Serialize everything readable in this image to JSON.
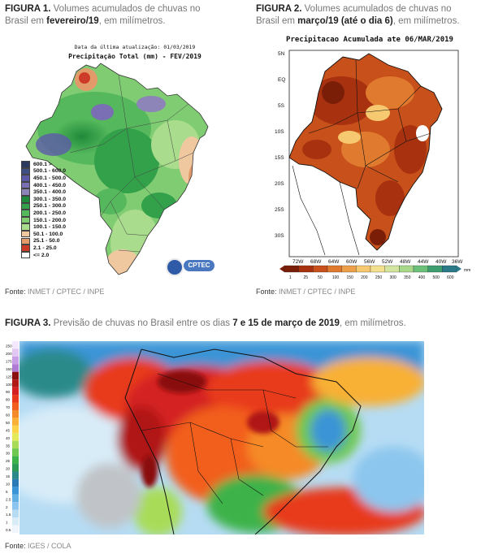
{
  "fig1": {
    "label": "FIGURA 1.",
    "caption_a": " Volumes acumulados de chuvas no Brasil em ",
    "caption_bold": "fevereiro/19",
    "caption_b": ", em milímetros.",
    "date_line": "Data da última atualização: 01/03/2019",
    "map_title": "Precipitação Total (mm) - FEV/2019",
    "legend": [
      {
        "label": "600.1 >",
        "color": "#2a3a60"
      },
      {
        "label": "500.1 - 600.0",
        "color": "#3e4f86"
      },
      {
        "label": "450.1 - 500.0",
        "color": "#5c5aa8"
      },
      {
        "label": "400.1 - 450.0",
        "color": "#7a6fb5"
      },
      {
        "label": "350.1 - 400.0",
        "color": "#8d84b8"
      },
      {
        "label": "300.1 - 350.0",
        "color": "#1e8a3a"
      },
      {
        "label": "250.1 - 300.0",
        "color": "#33a04a"
      },
      {
        "label": "200.1 - 250.0",
        "color": "#55b85c"
      },
      {
        "label": "150.1 - 200.0",
        "color": "#7fcc72"
      },
      {
        "label": "100.1 - 150.0",
        "color": "#a9dc8c"
      },
      {
        "label": "50.1 - 100.0",
        "color": "#f0c8a0"
      },
      {
        "label": "25.1 - 50.0",
        "color": "#e39a6a"
      },
      {
        "label": "2.1 - 25.0",
        "color": "#cc3a28"
      },
      {
        "label": "<= 2.0",
        "color": "#ffffff"
      }
    ],
    "logo_text": "CPTEC",
    "source_label": "Fonte: ",
    "source_value": "INMET / CPTEC / INPE"
  },
  "fig2": {
    "label": "FIGURA 2.",
    "caption_a": " Volumes acumulados de chuvas no Brasil em ",
    "caption_bold": "março/19 (até o dia 6)",
    "caption_b": ", em milímetros.",
    "map_title": "Precipitacao Acumulada ate 06/MAR/2019",
    "lat_labels": [
      "5N",
      "EQ",
      "5S",
      "10S",
      "15S",
      "20S",
      "25S",
      "30S"
    ],
    "lon_labels": [
      "72W",
      "68W",
      "64W",
      "60W",
      "56W",
      "52W",
      "48W",
      "44W",
      "40W",
      "36W"
    ],
    "colorbar_labels": [
      "1",
      "25",
      "50",
      "100",
      "150",
      "200",
      "250",
      "300",
      "350",
      "400",
      "500",
      "600"
    ],
    "colorbar_colors": [
      "#7a1e08",
      "#a83210",
      "#c8501a",
      "#df7a2e",
      "#eda04a",
      "#f6c870",
      "#f3e08e",
      "#d2e49e",
      "#a8d88a",
      "#6cc078",
      "#3e9d6e",
      "#2a7a8a"
    ],
    "colorbar_unit": "mm",
    "source_label": "Fonte: ",
    "source_value": "INMET / CPTEC / INPE"
  },
  "fig3": {
    "label": "FIGURA 3.",
    "caption_a": " Previsão de chuvas no Brasil entre os dias ",
    "caption_bold": "7 e 15 de março de 2019",
    "caption_b": ", em milímetros.",
    "scale_labels": [
      "250",
      "200",
      "175",
      "150",
      "125",
      "100",
      "90",
      "80",
      "70",
      "60",
      "50",
      "45",
      "40",
      "35",
      "30",
      "25",
      "20",
      "15",
      "10",
      "5",
      "2.5",
      "2",
      "1.5",
      "1",
      "0.5"
    ],
    "scale_colors": [
      "#f4e8ff",
      "#e2c6f4",
      "#c89ee6",
      "#b07ad4",
      "#8a1010",
      "#b01818",
      "#d42020",
      "#e83a1a",
      "#f25e1e",
      "#f58a28",
      "#f8b036",
      "#fcd248",
      "#e2ea5a",
      "#a8dc58",
      "#6ec850",
      "#3cb24a",
      "#2a9a54",
      "#2a8a8a",
      "#2a7ab8",
      "#3a94d6",
      "#62b0e4",
      "#8cc6ee",
      "#b6dcf4",
      "#d8ecf8",
      "#f0f6fb"
    ],
    "source_label": "Fonte: ",
    "source_value": "IGES / COLA"
  }
}
